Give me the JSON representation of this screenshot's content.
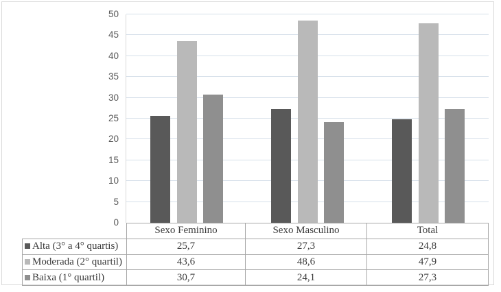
{
  "figure": {
    "background": "#ffffff",
    "border_color": "#d9d9d9"
  },
  "chart_data": {
    "type": "bar",
    "title": "",
    "xlabel": "",
    "ylabel": "",
    "categories": [
      "Sexo Feminino",
      "Sexo Masculino",
      "Total"
    ],
    "series": [
      {
        "name": "Alta (3° a 4° quartis)",
        "values": [
          25.7,
          27.3,
          24.8
        ],
        "color": "#595959"
      },
      {
        "name": "Moderada (2° quartil)",
        "values": [
          43.6,
          48.6,
          47.9
        ],
        "color": "#b9b9b9"
      },
      {
        "name": "Baixa (1° quartil)",
        "values": [
          30.7,
          24.1,
          27.3
        ],
        "color": "#8f8f8f"
      }
    ],
    "ylim": [
      0,
      50
    ],
    "yticks": [
      0,
      5,
      10,
      15,
      20,
      25,
      30,
      35,
      40,
      45,
      50
    ],
    "grid": true,
    "gridline_color": "#d5dfe9",
    "axis_line_color": "#d9d9d9",
    "tick_label_color": "#595959",
    "legend_position": "table-left-column"
  },
  "table": {
    "border_color": "#a6a6a6",
    "header": [
      "Sexo Feminino",
      "Sexo Masculino",
      "Total"
    ],
    "rows": [
      {
        "label": "Alta (3° a 4° quartis)",
        "marker_color": "#595959",
        "values": [
          "25,7",
          "27,3",
          "24,8"
        ]
      },
      {
        "label": "Moderada (2° quartil)",
        "marker_color": "#b9b9b9",
        "values": [
          "43,6",
          "48,6",
          "47,9"
        ]
      },
      {
        "label": "Baixa (1° quartil)",
        "marker_color": "#8f8f8f",
        "values": [
          "30,7",
          "24,1",
          "27,3"
        ]
      }
    ]
  }
}
